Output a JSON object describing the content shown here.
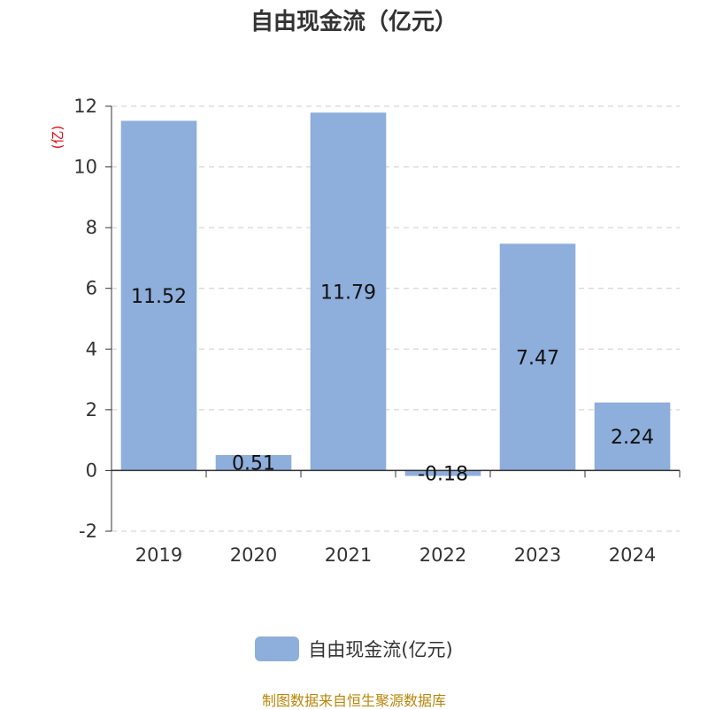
{
  "title": "自由现金流（亿元）",
  "footer": "制图数据来自恒生聚源数据库",
  "legend": {
    "label": "自由现金流(亿元)"
  },
  "colors": {
    "bar": "#8eaedb",
    "unit_label": "#e8000b",
    "axis": "#333333",
    "grid": "#cccccc",
    "source_text": "#b8860b"
  },
  "chart_data": {
    "type": "bar",
    "title": "自由现金流（亿元）",
    "ylabel": "(亿)",
    "categories": [
      "2019",
      "2020",
      "2021",
      "2022",
      "2023",
      "2024"
    ],
    "series": [
      {
        "name": "自由现金流(亿元)",
        "values": [
          11.52,
          0.51,
          11.79,
          -0.18,
          7.47,
          2.24
        ]
      }
    ],
    "data_labels": [
      "11.52",
      "0.51",
      "11.79",
      "-0.18",
      "7.47",
      "2.24"
    ],
    "ylim": [
      -2,
      12
    ],
    "yticks": [
      -2,
      0,
      2,
      4,
      6,
      8,
      10,
      12
    ],
    "grid": true,
    "legend_position": "bottom"
  }
}
